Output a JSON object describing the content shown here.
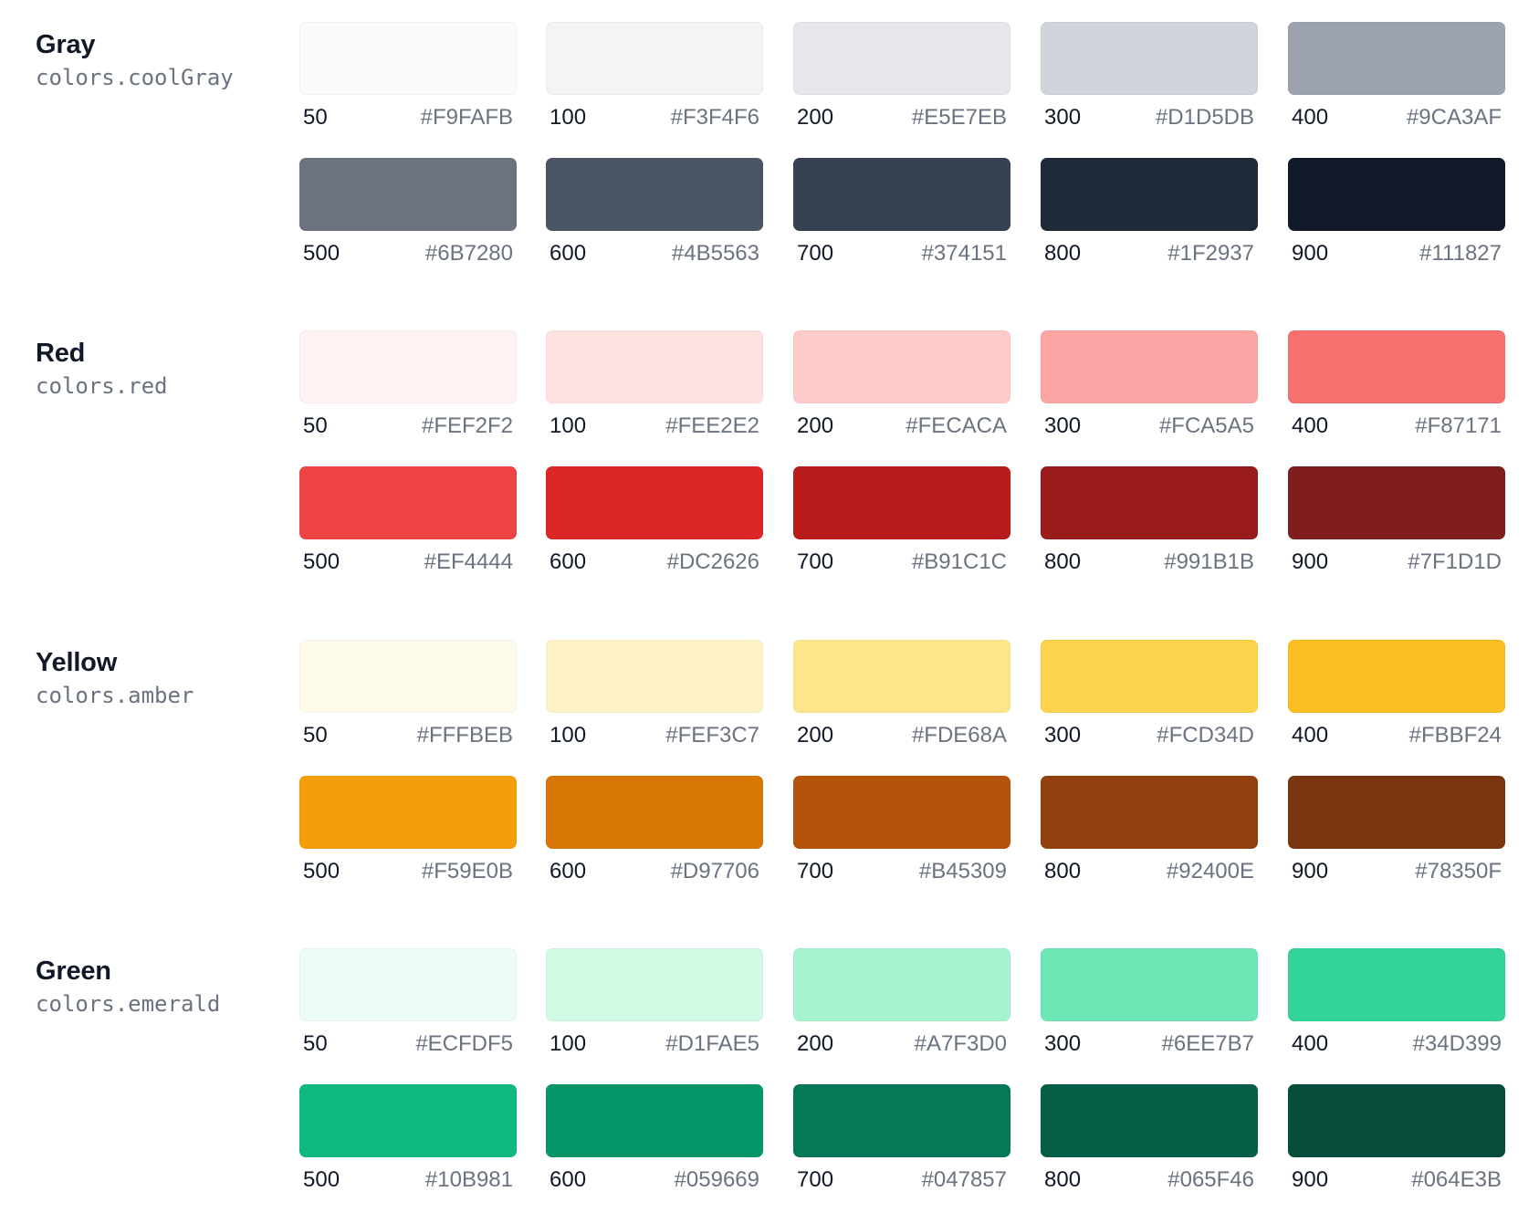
{
  "groups": [
    {
      "name": "Gray",
      "token": "colors.coolGray",
      "swatches": [
        {
          "shade": "50",
          "hex": "#F9FAFB"
        },
        {
          "shade": "100",
          "hex": "#F3F4F6"
        },
        {
          "shade": "200",
          "hex": "#E5E7EB"
        },
        {
          "shade": "300",
          "hex": "#D1D5DB"
        },
        {
          "shade": "400",
          "hex": "#9CA3AF"
        },
        {
          "shade": "500",
          "hex": "#6B7280"
        },
        {
          "shade": "600",
          "hex": "#4B5563"
        },
        {
          "shade": "700",
          "hex": "#374151"
        },
        {
          "shade": "800",
          "hex": "#1F2937"
        },
        {
          "shade": "900",
          "hex": "#111827"
        }
      ]
    },
    {
      "name": "Red",
      "token": "colors.red",
      "swatches": [
        {
          "shade": "50",
          "hex": "#FEF2F2"
        },
        {
          "shade": "100",
          "hex": "#FEE2E2"
        },
        {
          "shade": "200",
          "hex": "#FECACA"
        },
        {
          "shade": "300",
          "hex": "#FCA5A5"
        },
        {
          "shade": "400",
          "hex": "#F87171"
        },
        {
          "shade": "500",
          "hex": "#EF4444"
        },
        {
          "shade": "600",
          "hex": "#DC2626"
        },
        {
          "shade": "700",
          "hex": "#B91C1C"
        },
        {
          "shade": "800",
          "hex": "#991B1B"
        },
        {
          "shade": "900",
          "hex": "#7F1D1D"
        }
      ]
    },
    {
      "name": "Yellow",
      "token": "colors.amber",
      "swatches": [
        {
          "shade": "50",
          "hex": "#FFFBEB"
        },
        {
          "shade": "100",
          "hex": "#FEF3C7"
        },
        {
          "shade": "200",
          "hex": "#FDE68A"
        },
        {
          "shade": "300",
          "hex": "#FCD34D"
        },
        {
          "shade": "400",
          "hex": "#FBBF24"
        },
        {
          "shade": "500",
          "hex": "#F59E0B"
        },
        {
          "shade": "600",
          "hex": "#D97706"
        },
        {
          "shade": "700",
          "hex": "#B45309"
        },
        {
          "shade": "800",
          "hex": "#92400E"
        },
        {
          "shade": "900",
          "hex": "#78350F"
        }
      ]
    },
    {
      "name": "Green",
      "token": "colors.emerald",
      "swatches": [
        {
          "shade": "50",
          "hex": "#ECFDF5"
        },
        {
          "shade": "100",
          "hex": "#D1FAE5"
        },
        {
          "shade": "200",
          "hex": "#A7F3D0"
        },
        {
          "shade": "300",
          "hex": "#6EE7B7"
        },
        {
          "shade": "400",
          "hex": "#34D399"
        },
        {
          "shade": "500",
          "hex": "#10B981"
        },
        {
          "shade": "600",
          "hex": "#059669"
        },
        {
          "shade": "700",
          "hex": "#047857"
        },
        {
          "shade": "800",
          "hex": "#065F46"
        },
        {
          "shade": "900",
          "hex": "#064E3B"
        }
      ]
    }
  ]
}
